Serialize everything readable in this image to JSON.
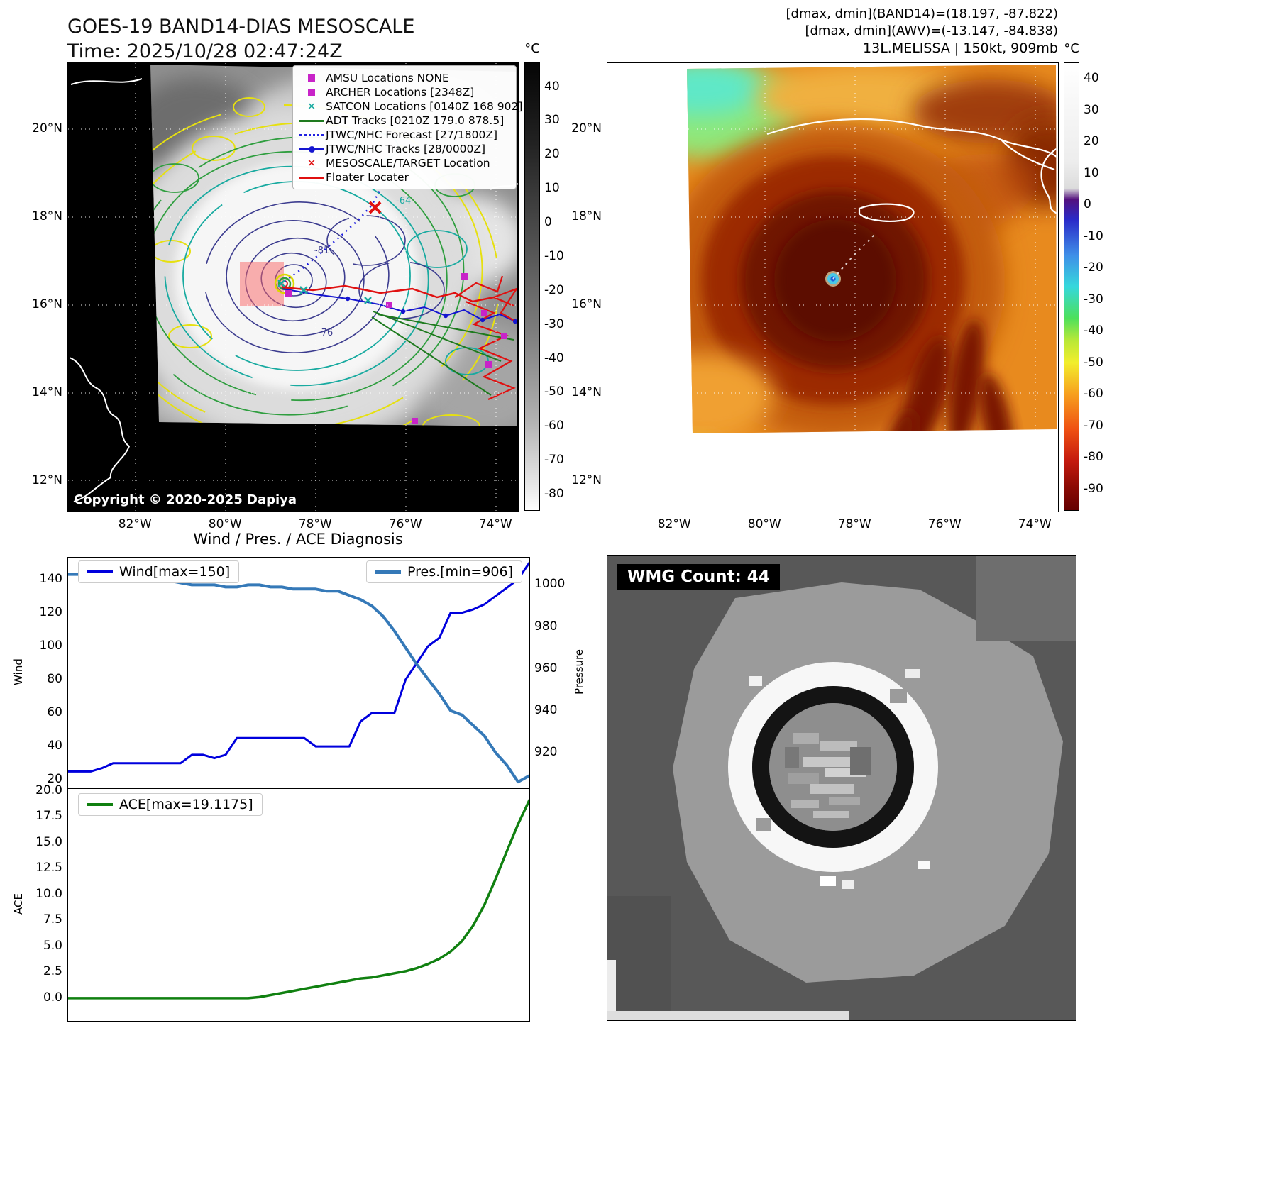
{
  "panel1": {
    "title": "GOES-19 BAND14-DIAS MESOSCALE",
    "time": "Time: 2025/10/28 02:47:24Z",
    "colorbar_unit": "°C",
    "colorbar_ticks": [
      "40",
      "30",
      "20",
      "10",
      "0",
      "-10",
      "-20",
      "-30",
      "-40",
      "-50",
      "-60",
      "-70",
      "-80"
    ],
    "lat_ticks": [
      "20°N",
      "18°N",
      "16°N",
      "14°N",
      "12°N"
    ],
    "lon_ticks": [
      "82°W",
      "80°W",
      "78°W",
      "76°W",
      "74°W"
    ],
    "legend": [
      {
        "label": "AMSU Locations NONE"
      },
      {
        "label": "ARCHER Locations [2348Z]"
      },
      {
        "label": "SATCON Locations [0140Z 168 902]"
      },
      {
        "label": "ADT Tracks [0210Z 179.0 878.5]"
      },
      {
        "label": "JTWC/NHC Forecast [27/1800Z]"
      },
      {
        "label": "JTWC/NHC Tracks [28/0000Z]"
      },
      {
        "label": "MESOSCALE/TARGET Location"
      },
      {
        "label": "Floater Locater"
      }
    ],
    "contour_labels": [
      "-76",
      "-81",
      "-64"
    ],
    "copyright": "Copyright © 2020-2025 Dapiya"
  },
  "panel2": {
    "info_line1": "[dmax, dmin](BAND14)=(18.197, -87.822)",
    "info_line2": "[dmax, dmin](AWV)=(-13.147, -84.838)",
    "info_line3": "13L.MELISSA | 150kt, 909mb",
    "colorbar_unit": "°C",
    "colorbar_ticks": [
      "40",
      "30",
      "20",
      "10",
      "0",
      "-10",
      "-20",
      "-30",
      "-40",
      "-50",
      "-60",
      "-70",
      "-80",
      "-90"
    ],
    "lat_ticks": [
      "20°N",
      "18°N",
      "16°N",
      "14°N",
      "12°N"
    ],
    "lon_ticks": [
      "82°W",
      "80°W",
      "78°W",
      "76°W",
      "74°W"
    ]
  },
  "panel4": {
    "label": "WMG Count: 44"
  },
  "chart_data": [
    {
      "type": "line",
      "title": "Wind / Pres. / ACE Diagnosis",
      "grid": false,
      "legend_position": "upper-left and upper-right",
      "series": [
        {
          "name": "Wind[max=150]",
          "axis": "left",
          "ylabel": "Wind",
          "color": "#0000dd",
          "ylim": [
            15,
            153
          ],
          "yticks": [
            "20",
            "40",
            "60",
            "80",
            "100",
            "120",
            "140"
          ],
          "values": [
            25,
            25,
            25,
            27,
            30,
            30,
            30,
            30,
            30,
            30,
            30,
            35,
            35,
            33,
            35,
            45,
            45,
            45,
            45,
            45,
            45,
            45,
            40,
            40,
            40,
            40,
            55,
            60,
            60,
            60,
            80,
            90,
            100,
            105,
            120,
            120,
            122,
            125,
            130,
            135,
            140,
            150
          ]
        },
        {
          "name": "Pres.[min=906]",
          "axis": "right",
          "ylabel": "Pressure",
          "color": "#3579b8",
          "ylim": [
            903,
            1013
          ],
          "yticks": [
            "920",
            "940",
            "960",
            "980",
            "1000"
          ],
          "values": [
            1005,
            1005,
            1005,
            1005,
            1004,
            1004,
            1003,
            1002,
            1002,
            1002,
            1001,
            1000,
            1000,
            1000,
            999,
            999,
            1000,
            1000,
            999,
            999,
            998,
            998,
            998,
            997,
            997,
            995,
            993,
            990,
            985,
            978,
            970,
            962,
            955,
            948,
            940,
            938,
            933,
            928,
            920,
            914,
            906,
            909
          ]
        }
      ]
    },
    {
      "type": "line",
      "grid": false,
      "legend_position": "upper-left",
      "series": [
        {
          "name": "ACE[max=19.1175]",
          "axis": "left",
          "ylabel": "ACE",
          "color": "#108010",
          "ylim": [
            -2.2,
            20.2
          ],
          "yticks": [
            "0.0",
            "2.5",
            "5.0",
            "7.5",
            "10.0",
            "12.5",
            "15.0",
            "17.5",
            "20.0"
          ],
          "values": [
            0,
            0,
            0,
            0,
            0,
            0,
            0,
            0,
            0,
            0,
            0,
            0,
            0,
            0,
            0,
            0,
            0,
            0.1,
            0.3,
            0.5,
            0.7,
            0.9,
            1.1,
            1.3,
            1.5,
            1.7,
            1.9,
            2.0,
            2.2,
            2.4,
            2.6,
            2.9,
            3.3,
            3.8,
            4.5,
            5.5,
            7.0,
            9.0,
            11.5,
            14.2,
            16.8,
            19.1175
          ]
        }
      ]
    }
  ]
}
